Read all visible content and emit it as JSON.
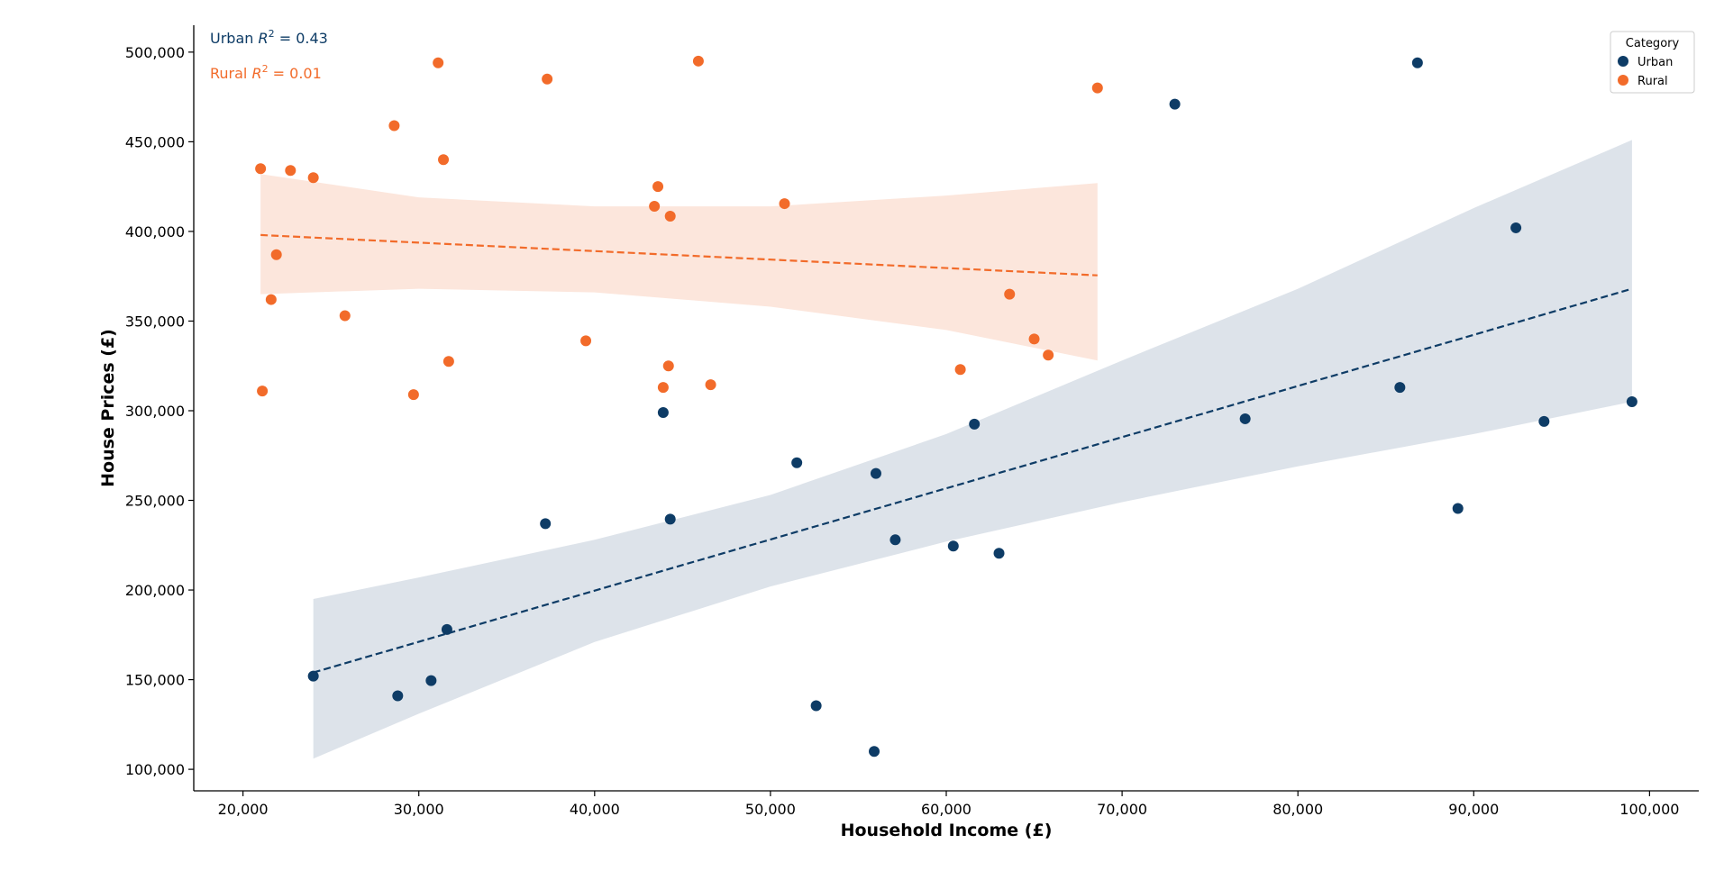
{
  "chart_data": {
    "type": "scatter",
    "xlabel": "Household Income (£)",
    "ylabel": "House Prices (£)",
    "xlim": [
      17200,
      102800
    ],
    "ylim": [
      88000,
      515000
    ],
    "x_ticks": [
      20000,
      30000,
      40000,
      50000,
      60000,
      70000,
      80000,
      90000,
      100000
    ],
    "x_tick_labels": [
      "20,000",
      "30,000",
      "40,000",
      "50,000",
      "60,000",
      "70,000",
      "80,000",
      "90,000",
      "100,000"
    ],
    "y_ticks": [
      100000,
      150000,
      200000,
      250000,
      300000,
      350000,
      400000,
      450000,
      500000
    ],
    "y_tick_labels": [
      "100,000",
      "150,000",
      "200,000",
      "250,000",
      "300,000",
      "350,000",
      "400,000",
      "450,000",
      "500,000"
    ],
    "grid": false,
    "legend": {
      "title": "Category",
      "placement": "top-right"
    },
    "annotations": [
      {
        "series": "Urban",
        "prefix": "Urban ",
        "r2": "0.43"
      },
      {
        "series": "Rural",
        "prefix": "Rural ",
        "r2": "0.01"
      }
    ],
    "series": [
      {
        "name": "Urban",
        "color": "#0e3c66",
        "band_color": "#dde3ea",
        "points": [
          [
            24000,
            152000
          ],
          [
            28800,
            141000
          ],
          [
            30700,
            149500
          ],
          [
            31600,
            178000
          ],
          [
            37200,
            237000
          ],
          [
            43900,
            299000
          ],
          [
            44300,
            239500
          ],
          [
            51500,
            271000
          ],
          [
            52600,
            135500
          ],
          [
            55900,
            110000
          ],
          [
            56000,
            265000
          ],
          [
            57100,
            228000
          ],
          [
            60400,
            224500
          ],
          [
            61600,
            292500
          ],
          [
            63000,
            220500
          ],
          [
            73000,
            471000
          ],
          [
            77000,
            295500
          ],
          [
            85800,
            313000
          ],
          [
            86800,
            494000
          ],
          [
            89100,
            245500
          ],
          [
            92400,
            402000
          ],
          [
            94000,
            294000
          ],
          [
            99000,
            305000
          ]
        ],
        "regression": {
          "x": [
            24000,
            99000
          ],
          "y": [
            154000,
            368000
          ]
        },
        "ci_band": {
          "x": [
            24000,
            30000,
            40000,
            50000,
            60000,
            70000,
            80000,
            90000,
            99000
          ],
          "upper": [
            195000,
            207000,
            228000,
            253000,
            287000,
            328000,
            368000,
            413000,
            451000
          ],
          "lower": [
            106000,
            131000,
            171000,
            202000,
            227000,
            249000,
            269000,
            287000,
            305000
          ]
        }
      },
      {
        "name": "Rural",
        "color": "#f26b2a",
        "band_color": "#fce6dc",
        "points": [
          [
            21000,
            435000
          ],
          [
            21100,
            311000
          ],
          [
            21600,
            362000
          ],
          [
            21900,
            387000
          ],
          [
            22700,
            434000
          ],
          [
            24000,
            430000
          ],
          [
            25800,
            353000
          ],
          [
            28600,
            459000
          ],
          [
            29700,
            309000
          ],
          [
            31100,
            494000
          ],
          [
            31400,
            440000
          ],
          [
            31700,
            327500
          ],
          [
            37300,
            485000
          ],
          [
            39500,
            339000
          ],
          [
            43400,
            414000
          ],
          [
            43600,
            425000
          ],
          [
            43900,
            313000
          ],
          [
            44200,
            325000
          ],
          [
            44300,
            408500
          ],
          [
            45900,
            495000
          ],
          [
            46600,
            314500
          ],
          [
            50800,
            415500
          ],
          [
            60800,
            323000
          ],
          [
            63600,
            365000
          ],
          [
            65000,
            340000
          ],
          [
            65800,
            331000
          ],
          [
            68600,
            480000
          ]
        ],
        "regression": {
          "x": [
            21000,
            68600
          ],
          "y": [
            398000,
            375500
          ]
        },
        "ci_band": {
          "x": [
            21000,
            30000,
            40000,
            50000,
            60000,
            68600
          ],
          "upper": [
            432000,
            419000,
            414000,
            414000,
            420000,
            427000
          ],
          "lower": [
            365000,
            368000,
            366000,
            358000,
            345000,
            328000
          ]
        }
      }
    ]
  }
}
